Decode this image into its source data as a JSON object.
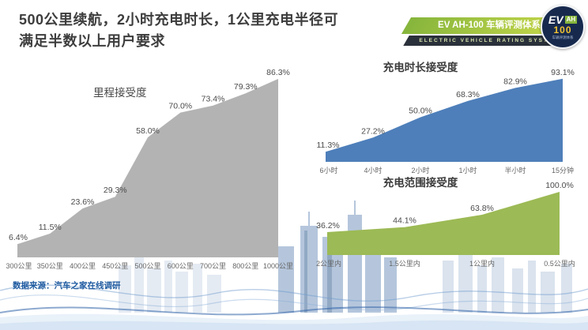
{
  "header": {
    "title_line1": "500公里续航，2小时充电时长，1公里充电半径可",
    "title_line2": "满足半数以上用户要求"
  },
  "badge": {
    "title": "EV AH-100 车辆评测体系",
    "subtitle": "ELECTRIC VEHICLE RATING SYSTEM",
    "logo_ev": "EV",
    "logo_ah": "AH",
    "logo_num": "100",
    "logo_caption": "车辆评测体系"
  },
  "footer": {
    "source": "数据来源：汽车之家在线调研"
  },
  "chart_data": [
    {
      "type": "area",
      "title": "里程接受度",
      "categories": [
        "300公里",
        "350公里",
        "400公里",
        "450公里",
        "500公里",
        "600公里",
        "700公里",
        "800公里",
        "1000公里"
      ],
      "values": [
        6.4,
        11.5,
        23.6,
        29.3,
        58.0,
        70.0,
        73.4,
        79.3,
        86.3
      ],
      "color": "#b3b3b3",
      "ylim": [
        0,
        100
      ],
      "grid": false,
      "legend": false
    },
    {
      "type": "area",
      "title": "充电时长接受度",
      "categories": [
        "6小时",
        "4小时",
        "2小时",
        "1小时",
        "半小时",
        "15分钟"
      ],
      "values": [
        11.3,
        27.2,
        50.0,
        68.3,
        82.9,
        93.1
      ],
      "color": "#4e7fba",
      "ylim": [
        0,
        100
      ],
      "grid": false,
      "legend": false
    },
    {
      "type": "area",
      "title": "充电范围接受度",
      "categories": [
        "2公里内",
        "1.5公里内",
        "1公里内",
        "0.5公里内"
      ],
      "values": [
        36.2,
        44.1,
        63.8,
        100.0
      ],
      "color": "#9cba55",
      "ylim": [
        0,
        100
      ],
      "grid": false,
      "legend": false
    }
  ]
}
